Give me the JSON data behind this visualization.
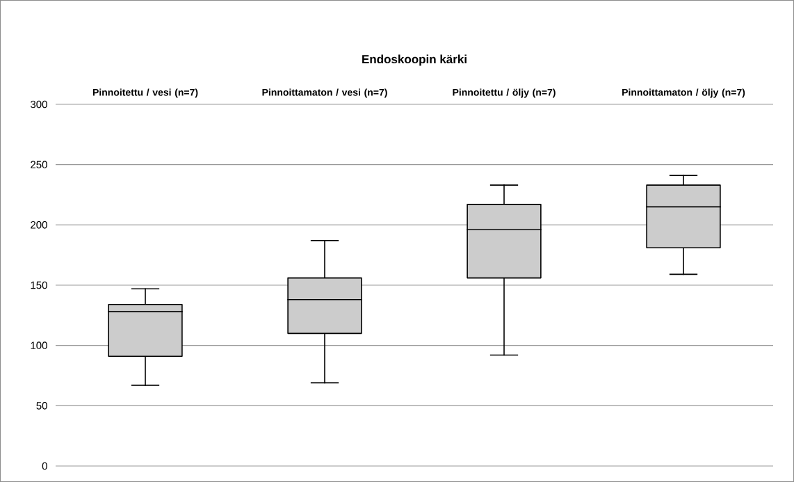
{
  "chart_data": {
    "type": "box",
    "title": "Endoskoopin kärki",
    "categories": [
      "Pinnoitettu / vesi (n=7)",
      "Pinnoittamaton / vesi (n=7)",
      "Pinnoitettu / öljy (n=7)",
      "Pinnoittamaton / öljy (n=7)"
    ],
    "boxes": [
      {
        "low": 67,
        "q1": 91,
        "median": 128,
        "q3": 134,
        "high": 147
      },
      {
        "low": 69,
        "q1": 110,
        "median": 138,
        "q3": 156,
        "high": 187
      },
      {
        "low": 92,
        "q1": 156,
        "median": 196,
        "q3": 217,
        "high": 233
      },
      {
        "low": 159,
        "q1": 181,
        "median": 215,
        "q3": 233,
        "high": 241
      }
    ],
    "color": "#cccccc",
    "ylim": [
      0,
      300
    ],
    "yticks": [
      0,
      50,
      100,
      150,
      200,
      250,
      300
    ],
    "grid": "y"
  }
}
